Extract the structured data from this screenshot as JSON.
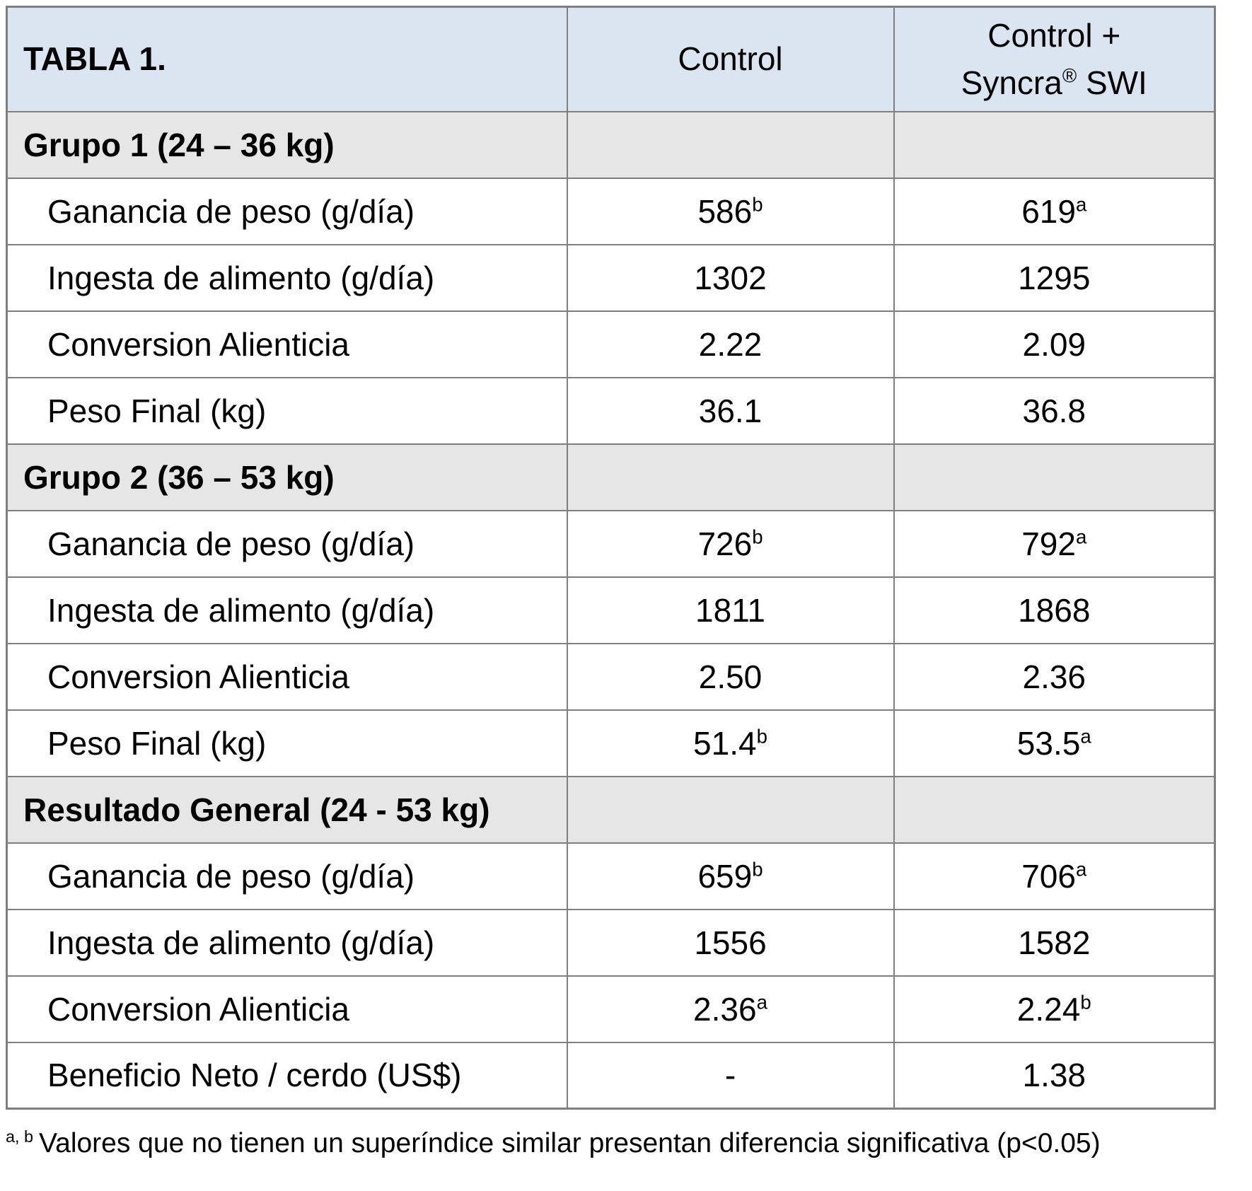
{
  "colors": {
    "header_background": "#dbe5f1",
    "section_background": "#e7e6e6",
    "border": "#7f7f7f",
    "text": "#000000",
    "page_background": "#ffffff"
  },
  "table": {
    "title": "TABLA 1.",
    "header": {
      "control": "Control",
      "treatment_line1": "Control +",
      "treatment_brand": "Syncra",
      "treatment_reg": "®",
      "treatment_rest": " SWI"
    },
    "sections": [
      {
        "label": "Grupo 1 (24 – 36 kg)",
        "rows": [
          {
            "label": "Ganancia de peso (g/día)",
            "control": {
              "v": "586",
              "s": "b"
            },
            "treatment": {
              "v": "619",
              "s": "a"
            }
          },
          {
            "label": "Ingesta de alimento (g/día)",
            "control": {
              "v": "1302",
              "s": ""
            },
            "treatment": {
              "v": "1295",
              "s": ""
            }
          },
          {
            "label": "Conversion Alienticia",
            "control": {
              "v": "2.22",
              "s": ""
            },
            "treatment": {
              "v": "2.09",
              "s": ""
            }
          },
          {
            "label": "Peso Final (kg)",
            "control": {
              "v": "36.1",
              "s": ""
            },
            "treatment": {
              "v": "36.8",
              "s": ""
            }
          }
        ]
      },
      {
        "label": "Grupo 2 (36 – 53 kg)",
        "rows": [
          {
            "label": "Ganancia de peso (g/día)",
            "control": {
              "v": "726",
              "s": "b"
            },
            "treatment": {
              "v": "792",
              "s": "a"
            }
          },
          {
            "label": "Ingesta de alimento (g/día)",
            "control": {
              "v": "1811",
              "s": ""
            },
            "treatment": {
              "v": "1868",
              "s": ""
            }
          },
          {
            "label": "Conversion Alienticia",
            "control": {
              "v": "2.50",
              "s": ""
            },
            "treatment": {
              "v": "2.36",
              "s": ""
            }
          },
          {
            "label": "Peso Final (kg)",
            "control": {
              "v": "51.4",
              "s": "b"
            },
            "treatment": {
              "v": "53.5",
              "s": "a"
            }
          }
        ]
      },
      {
        "label": "Resultado General (24 - 53 kg)",
        "rows": [
          {
            "label": "Ganancia de peso (g/día)",
            "control": {
              "v": "659",
              "s": "b"
            },
            "treatment": {
              "v": "706",
              "s": "a"
            }
          },
          {
            "label": "Ingesta de alimento (g/día)",
            "control": {
              "v": "1556",
              "s": ""
            },
            "treatment": {
              "v": "1582",
              "s": ""
            }
          },
          {
            "label": "Conversion Alienticia",
            "control": {
              "v": "2.36",
              "s": "a"
            },
            "treatment": {
              "v": "2.24",
              "s": "b"
            }
          },
          {
            "label": "Beneficio Neto / cerdo (US$)",
            "control": {
              "v": "-",
              "s": ""
            },
            "treatment": {
              "v": "1.38",
              "s": ""
            }
          }
        ]
      }
    ]
  },
  "footnote": {
    "sup": "a, b",
    "text": "Valores que no tienen un superíndice similar presentan diferencia significativa (p<0.05)"
  }
}
